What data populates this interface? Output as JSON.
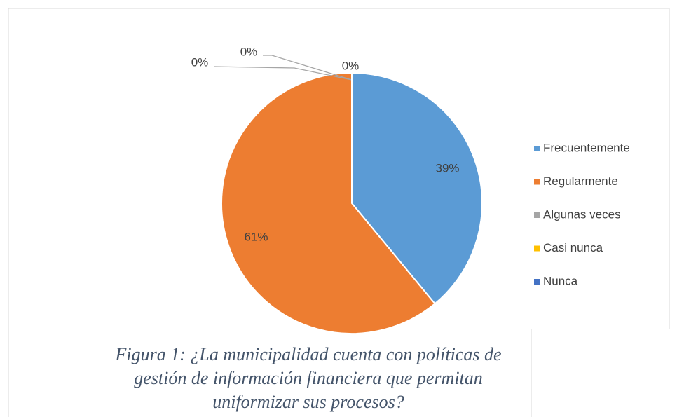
{
  "chart_data": {
    "type": "pie",
    "categories": [
      "Frecuentemente",
      "Regularmente",
      "Algunas veces",
      "Casi nunca",
      "Nunca"
    ],
    "values": [
      39,
      61,
      0,
      0,
      0
    ],
    "value_labels": [
      "39%",
      "61%",
      "0%",
      "0%",
      "0%"
    ],
    "colors": [
      "#5b9bd5",
      "#ed7d31",
      "#a5a5a5",
      "#ffc000",
      "#4472c4"
    ],
    "legend": "right",
    "caption": [
      "Figura 1: ¿La municipalidad cuenta con políticas de",
      "gestión de información financiera que permitan",
      "uniformizar sus procesos?"
    ]
  }
}
